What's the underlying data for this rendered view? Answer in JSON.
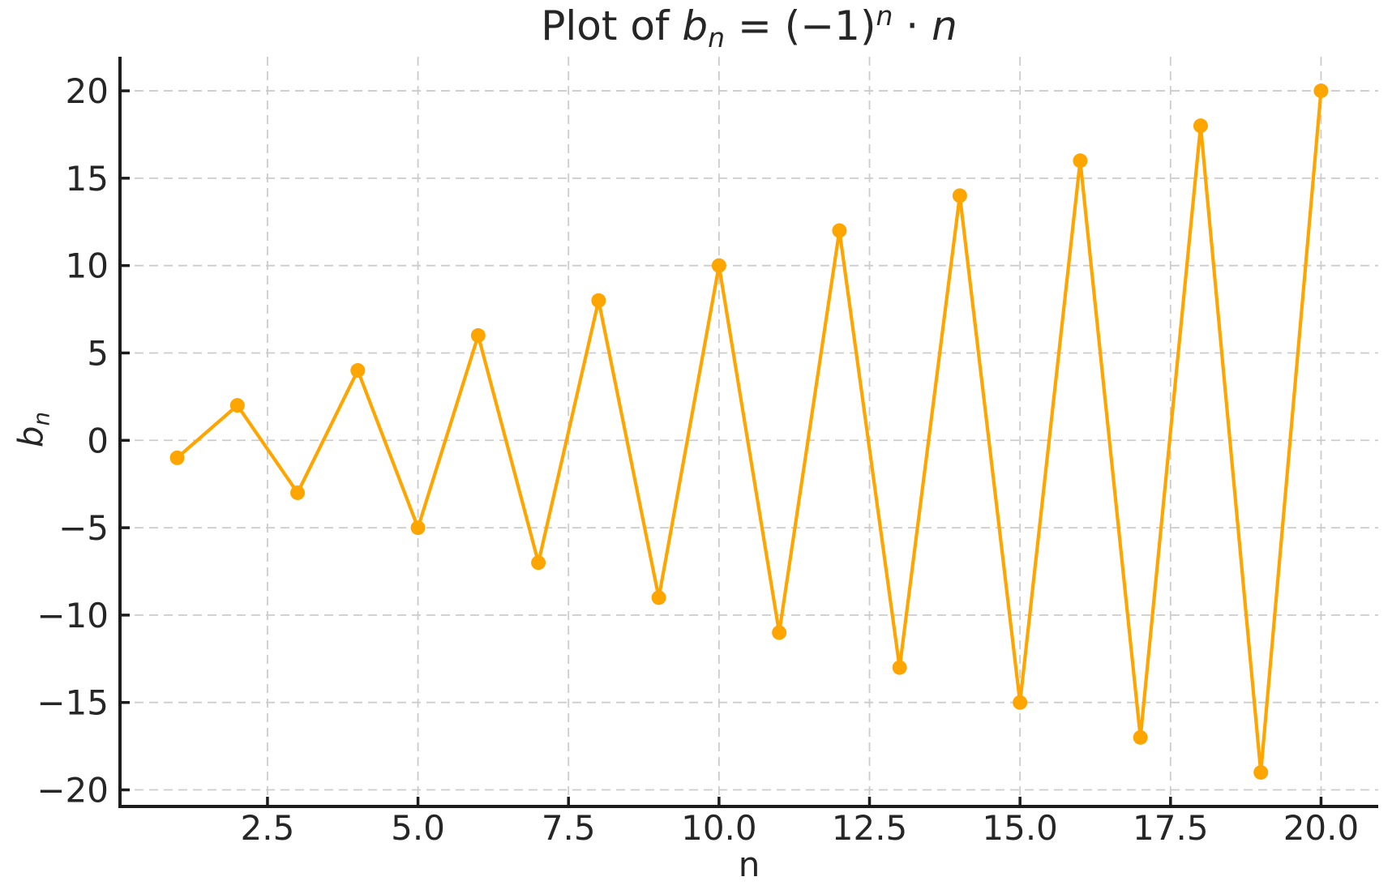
{
  "title": {
    "text": "Plot of bₙ = (−1)ⁿ · n",
    "prefix": "Plot of ",
    "var": "b",
    "var_sub": "n",
    "equals": " = (−1)",
    "exp": "n",
    "mult": " · ",
    "operand": "n"
  },
  "ylabel": {
    "text": "bₙ",
    "var": "b",
    "sub": "n"
  },
  "chart_data": {
    "type": "line",
    "title": "Plot of bₙ = (−1)ⁿ · n",
    "xlabel": "n",
    "ylabel": "bₙ",
    "series_formula": "b_n = (-1)^n * n",
    "x": [
      1,
      2,
      3,
      4,
      5,
      6,
      7,
      8,
      9,
      10,
      11,
      12,
      13,
      14,
      15,
      16,
      17,
      18,
      19,
      20
    ],
    "y": [
      -1,
      2,
      -3,
      4,
      -5,
      6,
      -7,
      8,
      -9,
      10,
      -11,
      12,
      -13,
      14,
      -15,
      16,
      -17,
      18,
      -19,
      20
    ],
    "xlim": [
      0.05,
      20.95
    ],
    "ylim": [
      -20.95,
      21.95
    ],
    "x_ticks": {
      "values": [
        2.5,
        5.0,
        7.5,
        10.0,
        12.5,
        15.0,
        17.5,
        20.0
      ],
      "labels": [
        "2.5",
        "5.0",
        "7.5",
        "10.0",
        "12.5",
        "15.0",
        "17.5",
        "20.0"
      ]
    },
    "y_ticks": {
      "values": [
        -20,
        -15,
        -10,
        -5,
        0,
        5,
        10,
        15,
        20
      ],
      "labels": [
        "−20",
        "−15",
        "−10",
        "−5",
        "0",
        "5",
        "10",
        "15",
        "20"
      ]
    },
    "grid": true,
    "grid_style": "dashed",
    "legend": false,
    "marker": "o",
    "colors": {
      "line": "#FFA500",
      "marker": "#FFA500",
      "grid": "#cccccc",
      "spine": "#1c1c1c",
      "text": "#262626",
      "background": "#ffffff"
    }
  }
}
